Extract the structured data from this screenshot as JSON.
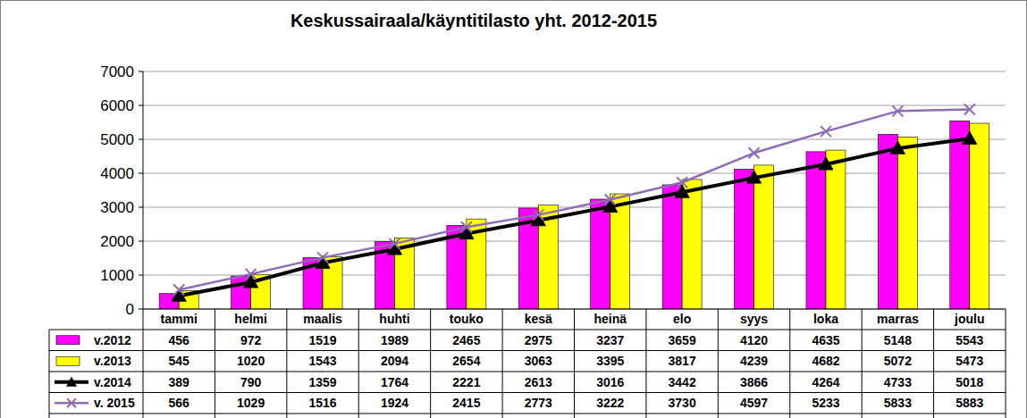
{
  "chart_data": {
    "type": "bar",
    "title": "Keskussairaala/käyntitilasto yht. 2012-2015",
    "categories": [
      "tammi",
      "helmi",
      "maalis",
      "huhti",
      "touko",
      "kesä",
      "heinä",
      "elo",
      "syys",
      "loka",
      "marras",
      "joulu"
    ],
    "series": [
      {
        "name": "v.2012",
        "type": "bar",
        "color": "#ff00ff",
        "values": [
          456,
          972,
          1519,
          1989,
          2465,
          2975,
          3237,
          3659,
          4120,
          4635,
          5148,
          5543
        ]
      },
      {
        "name": "v.2013",
        "type": "bar",
        "color": "#ffff00",
        "values": [
          545,
          1020,
          1543,
          2094,
          2654,
          3063,
          3395,
          3817,
          4239,
          4682,
          5072,
          5473
        ]
      },
      {
        "name": "v.2014",
        "type": "line",
        "color": "#000000",
        "marker": "triangle",
        "values": [
          389,
          790,
          1359,
          1764,
          2221,
          2613,
          3016,
          3442,
          3866,
          4264,
          4733,
          5018
        ]
      },
      {
        "name": "v. 2015",
        "type": "line",
        "color": "#8e6bb5",
        "marker": "x",
        "values": [
          566,
          1029,
          1516,
          1924,
          2415,
          2773,
          3222,
          3730,
          4597,
          5233,
          5833,
          5883
        ]
      }
    ],
    "ylim": [
      0,
      7000
    ],
    "yticks": [
      0,
      1000,
      2000,
      3000,
      4000,
      5000,
      6000,
      7000
    ],
    "grid": true
  }
}
